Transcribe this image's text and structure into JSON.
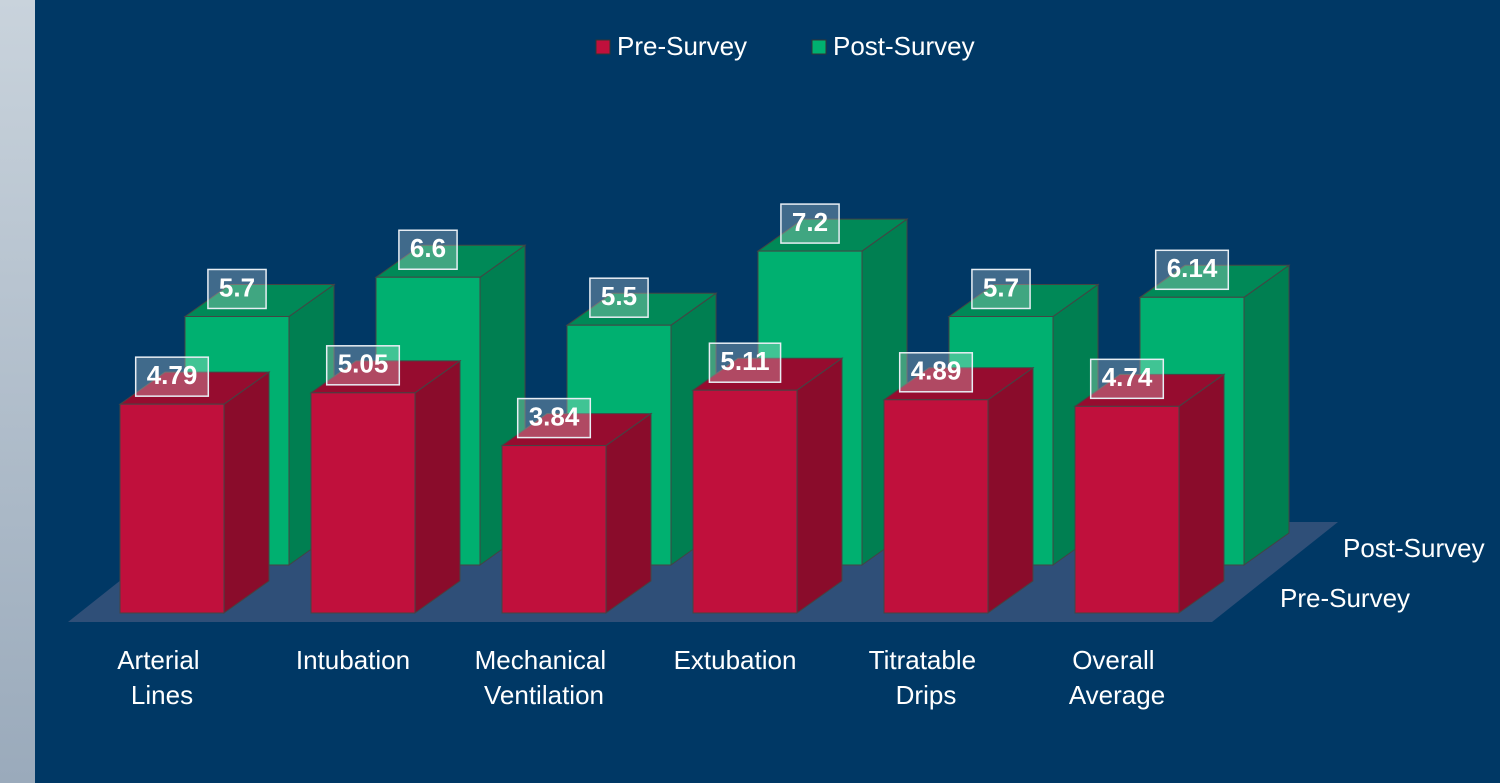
{
  "chart_data": {
    "type": "bar3d",
    "categories": [
      "Arterial Lines",
      "Intubation",
      "Mechanical Ventilation",
      "Extubation",
      "Titratable Drips",
      "Overall Average"
    ],
    "series": [
      {
        "name": "Pre-Survey",
        "color": "#c0103c",
        "values": [
          4.79,
          5.05,
          3.84,
          5.11,
          4.89,
          4.74
        ]
      },
      {
        "name": "Post-Survey",
        "color": "#00b070",
        "values": [
          5.7,
          6.6,
          5.5,
          7.2,
          5.7,
          6.14
        ]
      }
    ],
    "legend": "top"
  }
}
